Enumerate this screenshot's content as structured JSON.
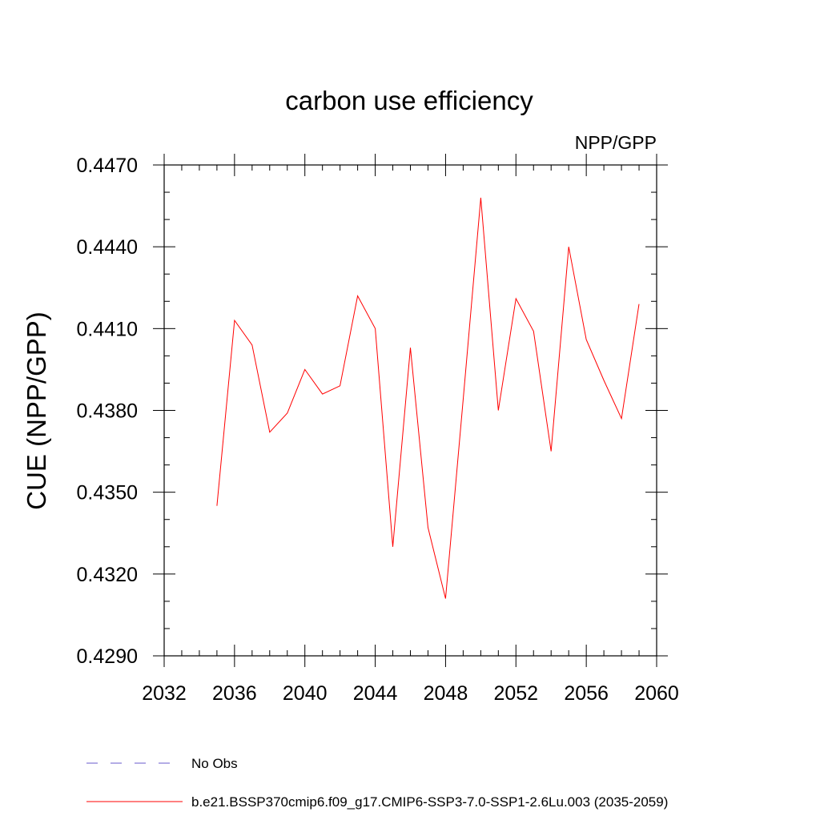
{
  "chart_data": {
    "type": "line",
    "title": "carbon use efficiency",
    "subtitle_right": "NPP/GPP",
    "xlabel": "",
    "ylabel": "CUE  (NPP/GPP)",
    "xlim": [
      2032,
      2060
    ],
    "ylim": [
      0.429,
      0.447
    ],
    "x_ticks": [
      2032,
      2036,
      2040,
      2044,
      2048,
      2052,
      2056,
      2060
    ],
    "x_tick_labels": [
      "2032",
      "2036",
      "2040",
      "2044",
      "2048",
      "2052",
      "2056",
      "2060"
    ],
    "y_ticks": [
      0.429,
      0.432,
      0.435,
      0.438,
      0.441,
      0.444,
      0.447
    ],
    "y_tick_labels": [
      "0.4290",
      "0.4320",
      "0.4350",
      "0.4380",
      "0.4410",
      "0.4440",
      "0.4470"
    ],
    "x_minor_step": 1,
    "y_minor_step": 0.001,
    "grid": false,
    "series": [
      {
        "name": "b.e21.BSSP370cmip6.f09_g17.CMIP6-SSP3-7.0-SSP1-2.6Lu.003 (2035-2059)",
        "color": "#ff0000",
        "style": "solid",
        "x": [
          2035,
          2036,
          2037,
          2038,
          2039,
          2040,
          2041,
          2042,
          2043,
          2044,
          2045,
          2046,
          2047,
          2048,
          2049,
          2050,
          2051,
          2052,
          2053,
          2054,
          2055,
          2056,
          2057,
          2058,
          2059
        ],
        "values": [
          0.4345,
          0.4413,
          0.4404,
          0.4372,
          0.4379,
          0.4395,
          0.4386,
          0.4389,
          0.4422,
          0.441,
          0.433,
          0.4403,
          0.4337,
          0.4311,
          0.4384,
          0.4458,
          0.438,
          0.4421,
          0.4409,
          0.4365,
          0.444,
          0.4406,
          0.4391,
          0.4377,
          0.4419
        ]
      }
    ],
    "legend": {
      "placement": "bottom",
      "entries": [
        {
          "label": "No Obs",
          "color": "#6a5acd",
          "style": "dashed"
        },
        {
          "label": "b.e21.BSSP370cmip6.f09_g17.CMIP6-SSP3-7.0-SSP1-2.6Lu.003 (2035-2059)",
          "color": "#ff0000",
          "style": "solid"
        }
      ]
    }
  }
}
